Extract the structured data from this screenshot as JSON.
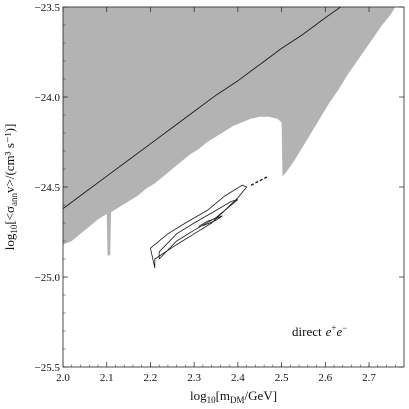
{
  "chart_data": {
    "type": "area",
    "title": "",
    "xlabel": {
      "pre": "log",
      "sub": "10",
      "mid": "[m",
      "sub2": "DM",
      "post": "/GeV]"
    },
    "ylabel": {
      "pre": "log",
      "sub": "10",
      "mid": "[<σ",
      "sub2": "ann",
      "post": "v>/(cm³ s⁻¹)]"
    },
    "xlim": [
      2.0,
      2.78
    ],
    "ylim": [
      -25.5,
      -23.5
    ],
    "x_ticks": [
      {
        "value": 2.0,
        "label": "2.0"
      },
      {
        "value": 2.1,
        "label": "2.1"
      },
      {
        "value": 2.2,
        "label": "2.2"
      },
      {
        "value": 2.3,
        "label": "2.3"
      },
      {
        "value": 2.4,
        "label": "2.4"
      },
      {
        "value": 2.5,
        "label": "2.5"
      },
      {
        "value": 2.6,
        "label": "2.6"
      },
      {
        "value": 2.7,
        "label": "2.7"
      }
    ],
    "y_ticks": [
      {
        "value": -23.5,
        "label": "−23.5"
      },
      {
        "value": -24.0,
        "label": "−24.0"
      },
      {
        "value": -24.5,
        "label": "−24.5"
      },
      {
        "value": -25.0,
        "label": "−25.0"
      },
      {
        "value": -25.5,
        "label": "−25.5"
      }
    ],
    "annotation": {
      "text": "direct",
      "formula": "e",
      "sup1": "+",
      "formula2": "e",
      "sup2": "−"
    },
    "excluded_region": {
      "color": "#b3b3b3",
      "lower_boundary": [
        [
          2.0,
          -24.82
        ],
        [
          2.02,
          -24.8
        ],
        [
          2.04,
          -24.76
        ],
        [
          2.06,
          -24.72
        ],
        [
          2.08,
          -24.68
        ],
        [
          2.1,
          -24.65
        ],
        [
          2.102,
          -24.88
        ],
        [
          2.108,
          -24.88
        ],
        [
          2.11,
          -24.64
        ],
        [
          2.13,
          -24.61
        ],
        [
          2.15,
          -24.58
        ],
        [
          2.17,
          -24.55
        ],
        [
          2.19,
          -24.51
        ],
        [
          2.21,
          -24.48
        ],
        [
          2.23,
          -24.44
        ],
        [
          2.25,
          -24.4
        ],
        [
          2.27,
          -24.36
        ],
        [
          2.29,
          -24.32
        ],
        [
          2.31,
          -24.29
        ],
        [
          2.33,
          -24.25
        ],
        [
          2.35,
          -24.22
        ],
        [
          2.37,
          -24.19
        ],
        [
          2.39,
          -24.16
        ],
        [
          2.41,
          -24.14
        ],
        [
          2.43,
          -24.12
        ],
        [
          2.45,
          -24.11
        ],
        [
          2.47,
          -24.11
        ],
        [
          2.49,
          -24.12
        ],
        [
          2.5,
          -24.14
        ],
        [
          2.502,
          -24.44
        ],
        [
          2.51,
          -24.42
        ],
        [
          2.53,
          -24.35
        ],
        [
          2.55,
          -24.27
        ],
        [
          2.57,
          -24.19
        ],
        [
          2.59,
          -24.11
        ],
        [
          2.61,
          -24.03
        ],
        [
          2.63,
          -23.96
        ],
        [
          2.65,
          -23.88
        ],
        [
          2.67,
          -23.81
        ],
        [
          2.69,
          -23.74
        ],
        [
          2.71,
          -23.67
        ],
        [
          2.73,
          -23.6
        ],
        [
          2.75,
          -23.54
        ],
        [
          2.76,
          -23.5
        ]
      ]
    },
    "series": [
      {
        "type": "line",
        "points": [
          [
            2.0,
            -24.62
          ],
          [
            2.05,
            -24.53
          ],
          [
            2.1,
            -24.44
          ],
          [
            2.15,
            -24.35
          ],
          [
            2.2,
            -24.26
          ],
          [
            2.25,
            -24.17
          ],
          [
            2.3,
            -24.08
          ],
          [
            2.35,
            -23.99
          ],
          [
            2.4,
            -23.91
          ],
          [
            2.45,
            -23.82
          ],
          [
            2.5,
            -23.73
          ],
          [
            2.55,
            -23.65
          ],
          [
            2.6,
            -23.56
          ],
          [
            2.635,
            -23.5
          ]
        ]
      },
      {
        "type": "contour-outer",
        "points": [
          [
            2.21,
            -24.95
          ],
          [
            2.21,
            -24.9
          ],
          [
            2.26,
            -24.82
          ],
          [
            2.3,
            -24.76
          ],
          [
            2.34,
            -24.7
          ],
          [
            2.37,
            -24.63
          ],
          [
            2.4,
            -24.56
          ],
          [
            2.42,
            -24.5
          ],
          [
            2.41,
            -24.49
          ],
          [
            2.37,
            -24.55
          ],
          [
            2.33,
            -24.63
          ],
          [
            2.28,
            -24.7
          ],
          [
            2.24,
            -24.76
          ],
          [
            2.2,
            -24.84
          ],
          [
            2.21,
            -24.95
          ]
        ]
      },
      {
        "type": "contour-inner",
        "points": [
          [
            2.22,
            -24.9
          ],
          [
            2.26,
            -24.8
          ],
          [
            2.3,
            -24.74
          ],
          [
            2.35,
            -24.67
          ],
          [
            2.38,
            -24.61
          ],
          [
            2.4,
            -24.57
          ],
          [
            2.385,
            -24.58
          ],
          [
            2.35,
            -24.63
          ],
          [
            2.3,
            -24.7
          ],
          [
            2.26,
            -24.76
          ],
          [
            2.22,
            -24.86
          ],
          [
            2.22,
            -24.9
          ]
        ]
      },
      {
        "type": "contour-core",
        "points": [
          [
            2.31,
            -24.72
          ],
          [
            2.33,
            -24.69
          ],
          [
            2.35,
            -24.675
          ],
          [
            2.365,
            -24.66
          ],
          [
            2.35,
            -24.685
          ],
          [
            2.32,
            -24.715
          ]
        ]
      },
      {
        "type": "dashed",
        "points": [
          [
            2.43,
            -24.49
          ],
          [
            2.47,
            -24.44
          ]
        ]
      }
    ]
  }
}
